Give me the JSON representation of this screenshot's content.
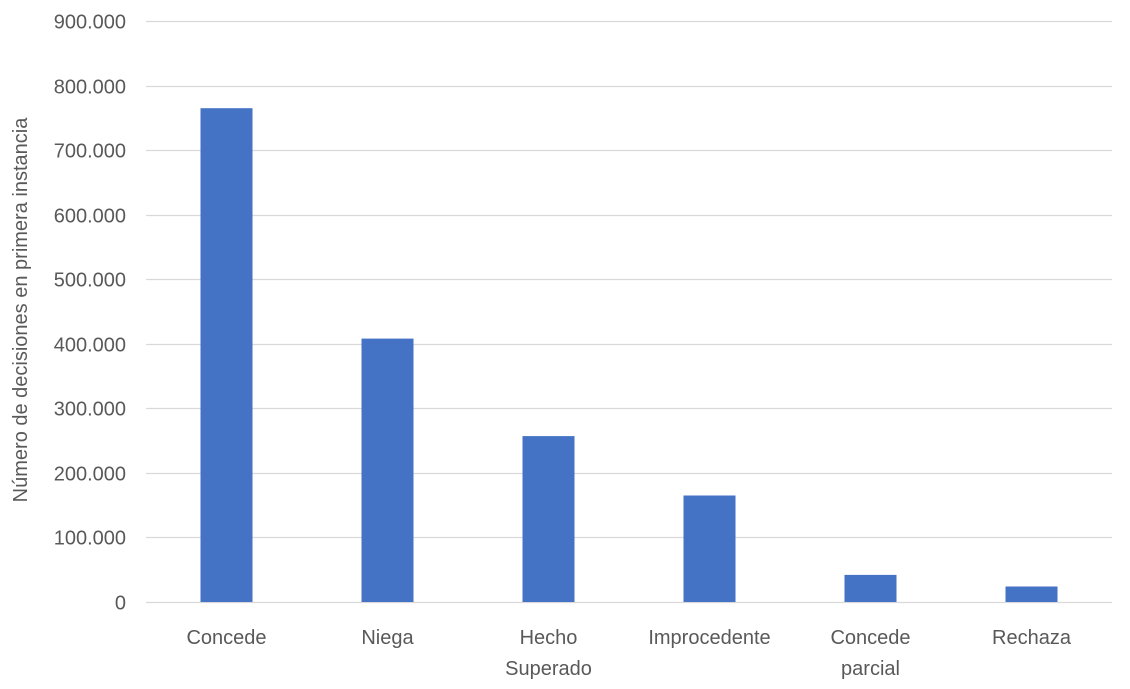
{
  "chart_data": {
    "type": "bar",
    "title": "",
    "xlabel": "",
    "ylabel": "Número de decisiones en primera instancia",
    "categories": [
      [
        "Concede"
      ],
      [
        "Niega"
      ],
      [
        "Hecho",
        "Superado"
      ],
      [
        "Improcedente"
      ],
      [
        "Concede",
        "parcial"
      ],
      [
        "Rechaza"
      ]
    ],
    "values": [
      765000,
      408000,
      257000,
      165000,
      42000,
      24000
    ],
    "ylim": [
      0,
      900000
    ],
    "yticks": [
      "0",
      "100.000",
      "200.000",
      "300.000",
      "400.000",
      "500.000",
      "600.000",
      "700.000",
      "800.000",
      "900.000"
    ],
    "grid": true,
    "legend": "none",
    "colors": {
      "bar": "#4472C4",
      "grid": "#D9D9D9",
      "text": "#595959"
    }
  }
}
